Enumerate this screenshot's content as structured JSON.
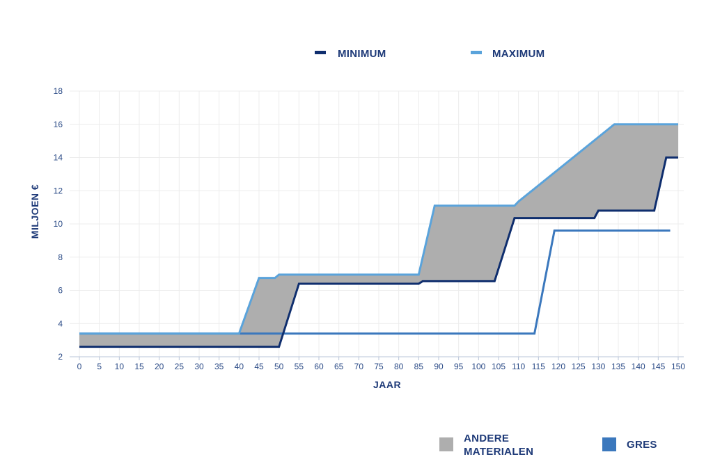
{
  "chart_data": {
    "type": "line",
    "xlabel": "JAAR",
    "ylabel": "MILJOEN €",
    "xlim": [
      0,
      150
    ],
    "ylim": [
      2,
      18
    ],
    "x_ticks": [
      0,
      5,
      10,
      15,
      20,
      25,
      30,
      35,
      40,
      45,
      50,
      55,
      60,
      65,
      70,
      75,
      80,
      85,
      90,
      95,
      100,
      105,
      110,
      115,
      120,
      125,
      130,
      135,
      140,
      145,
      150
    ],
    "y_ticks": [
      2,
      4,
      6,
      8,
      10,
      12,
      14,
      16,
      18
    ],
    "grid": true,
    "legend_top": [
      {
        "label": "MINIMUM",
        "color": "#0f2e6e"
      },
      {
        "label": "MAXIMUM",
        "color": "#5aa3db"
      }
    ],
    "legend_bottom": [
      {
        "label_lines": [
          "ANDERE",
          "MATERIALEN"
        ],
        "color": "#aeaeae"
      },
      {
        "label_lines": [
          "GRES"
        ],
        "color": "#3b78bd"
      }
    ],
    "band_color": "#aeaeae",
    "series": [
      {
        "name": "MINIMUM",
        "color": "#0f2e6e",
        "points": [
          [
            0,
            2.6
          ],
          [
            50,
            2.6
          ],
          [
            55,
            6.4
          ],
          [
            85,
            6.4
          ],
          [
            86,
            6.55
          ],
          [
            104,
            6.55
          ],
          [
            109,
            10.35
          ],
          [
            129,
            10.35
          ],
          [
            130,
            10.8
          ],
          [
            144,
            10.8
          ],
          [
            147,
            14.0
          ],
          [
            150,
            14.0
          ]
        ]
      },
      {
        "name": "MAXIMUM",
        "color": "#5aa3db",
        "points": [
          [
            0,
            3.4
          ],
          [
            40,
            3.4
          ],
          [
            45,
            6.75
          ],
          [
            49,
            6.75
          ],
          [
            50,
            6.95
          ],
          [
            85,
            6.95
          ],
          [
            89,
            11.1
          ],
          [
            109,
            11.1
          ],
          [
            110,
            11.35
          ],
          [
            134,
            16.0
          ],
          [
            150,
            16.0
          ]
        ]
      },
      {
        "name": "GRES",
        "color": "#3b78bd",
        "points": [
          [
            0,
            3.4
          ],
          [
            114,
            3.4
          ],
          [
            119,
            9.6
          ],
          [
            148,
            9.6
          ]
        ]
      }
    ]
  }
}
